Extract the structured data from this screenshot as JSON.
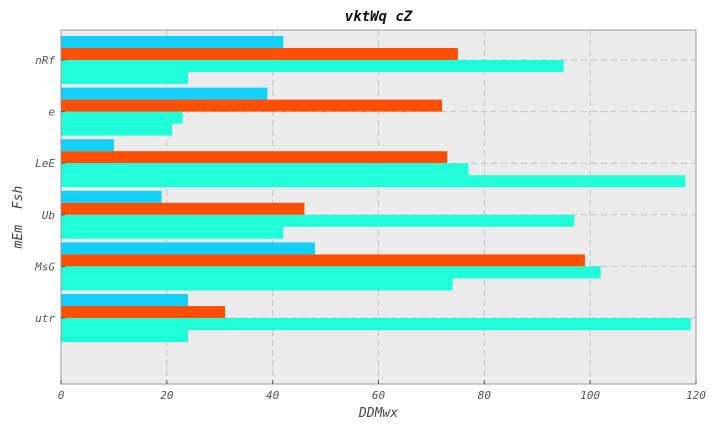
{
  "chart_data": {
    "type": "bar",
    "orientation": "horizontal",
    "title": "vktWq cZ",
    "xlabel": "DDMwx",
    "ylabel": "mEm  Fsh",
    "xlim": [
      0,
      120
    ],
    "xticks": [
      0,
      20,
      40,
      60,
      80,
      100,
      120
    ],
    "categories": [
      "nRf",
      "e",
      "LeE",
      "Ub",
      "MsG",
      "utr"
    ],
    "series": [
      {
        "color": "#14cff7",
        "values": [
          42,
          39,
          10,
          19,
          48,
          24
        ]
      },
      {
        "color": "#ff4f03",
        "values": [
          75,
          72,
          73,
          46,
          99,
          31
        ]
      },
      {
        "color": "#1fffda",
        "values": [
          95,
          23,
          77,
          97,
          102,
          119
        ]
      },
      {
        "color": "#1fffda",
        "values": [
          24,
          21,
          118,
          42,
          74,
          24
        ]
      }
    ],
    "grid": true,
    "background": "#ececec"
  }
}
